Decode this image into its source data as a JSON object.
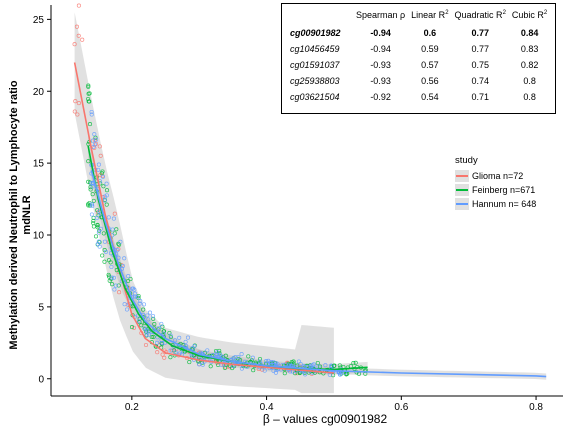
{
  "chart_data": {
    "type": "scatter",
    "xlabel": "β – values cg00901982",
    "ylabel_line1": "Methylation derived Neutrophil to Lymphocyte ratio",
    "ylabel_line2": "mdNLR",
    "xlim": [
      0.08,
      0.84
    ],
    "ylim": [
      -1.2,
      26
    ],
    "x_ticks": [
      0.2,
      0.4,
      0.6,
      0.8
    ],
    "x_tick_labels": [
      "0.2",
      "0.4",
      "0.6",
      "0.8"
    ],
    "y_ticks": [
      0,
      5,
      10,
      15,
      20,
      25
    ],
    "y_tick_labels": [
      "0",
      "5",
      "10",
      "15",
      "20",
      "25"
    ],
    "grid": false,
    "legend_placement": "right",
    "legend_title": "study",
    "series": [
      {
        "name": "Glioma n=72",
        "color": "#F8766D",
        "fit_x": [
          0.115,
          0.14,
          0.16,
          0.18,
          0.2,
          0.22,
          0.25,
          0.3,
          0.35,
          0.4,
          0.45,
          0.5
        ],
        "fit_y": [
          22.0,
          16.0,
          11.5,
          7.8,
          4.5,
          2.8,
          1.8,
          1.3,
          1.0,
          0.8,
          0.6,
          0.4
        ],
        "band": 3.5
      },
      {
        "name": "Feinberg n=671",
        "color": "#00BA38",
        "fit_x": [
          0.135,
          0.15,
          0.17,
          0.19,
          0.21,
          0.23,
          0.26,
          0.3,
          0.35,
          0.4,
          0.45,
          0.5,
          0.55
        ],
        "fit_y": [
          16.2,
          12.5,
          9.0,
          6.3,
          4.5,
          3.3,
          2.3,
          1.6,
          1.2,
          0.9,
          0.7,
          0.65,
          0.8
        ],
        "band": 0.9
      },
      {
        "name": "Hannum n= 648",
        "color": "#619CFF",
        "fit_x": [
          0.14,
          0.16,
          0.18,
          0.2,
          0.22,
          0.25,
          0.3,
          0.35,
          0.4,
          0.5,
          0.6,
          0.7,
          0.8,
          0.815
        ],
        "fit_y": [
          14.5,
          11.0,
          8.0,
          5.6,
          4.0,
          2.8,
          1.7,
          1.2,
          0.9,
          0.55,
          0.4,
          0.3,
          0.2,
          0.15
        ],
        "band": 0.6
      }
    ],
    "stats_table": {
      "headers": [
        "",
        "Spearman ρ",
        "Linear R",
        "Quadratic R",
        "Cubic R"
      ],
      "header_sup": "2",
      "rows": [
        {
          "cpg": "cg00901982",
          "rho": "-0.94",
          "linear": "0.6",
          "quadratic": "0.77",
          "cubic": "0.84",
          "bold": true
        },
        {
          "cpg": "cg10456459",
          "rho": "-0.94",
          "linear": "0.59",
          "quadratic": "0.77",
          "cubic": "0.83",
          "bold": false
        },
        {
          "cpg": "cg01591037",
          "rho": "-0.93",
          "linear": "0.57",
          "quadratic": "0.75",
          "cubic": "0.82",
          "bold": false
        },
        {
          "cpg": "cg25938803",
          "rho": "-0.93",
          "linear": "0.56",
          "quadratic": "0.74",
          "cubic": "0.8",
          "bold": false
        },
        {
          "cpg": "cg03621504",
          "rho": "-0.92",
          "linear": "0.54",
          "quadratic": "0.71",
          "cubic": "0.8",
          "bold": false
        }
      ]
    }
  }
}
